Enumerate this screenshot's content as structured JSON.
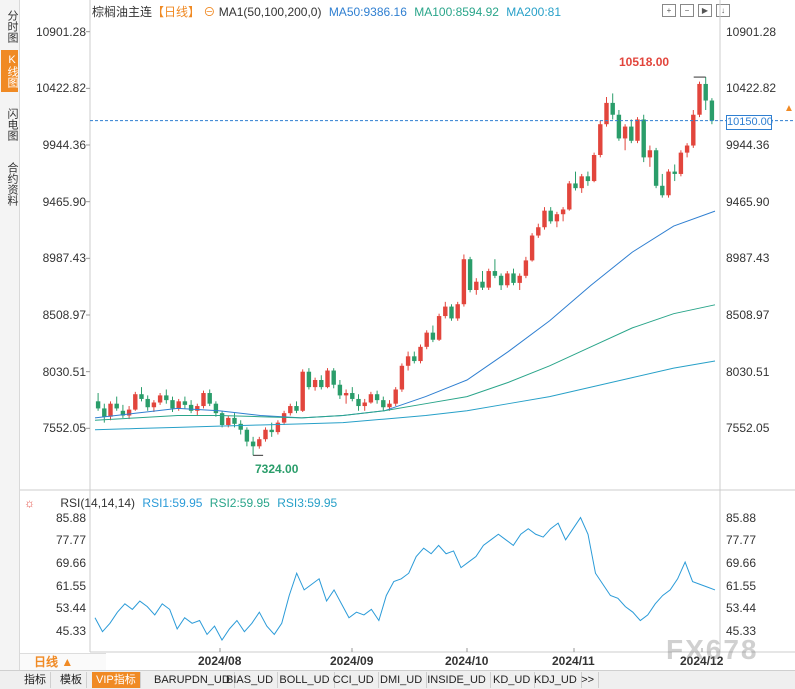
{
  "sidebar": {
    "tabs": [
      {
        "label": "分时图",
        "active": false
      },
      {
        "label": "K线图",
        "active": true
      },
      {
        "label": "闪电图",
        "active": false
      },
      {
        "label": "合约资料",
        "active": false
      }
    ]
  },
  "header": {
    "title": "棕榈油主连",
    "period": "【日线】",
    "ma_label": "MA1(50,100,200,0)",
    "ma50": "MA50:9386.16",
    "ma100": "MA100:8594.92",
    "ma200": "MA200:81"
  },
  "rsi_header": {
    "label": "RSI(14,14,14)",
    "rsi1": "RSI1:59.95",
    "rsi2": "RSI2:59.95",
    "rsi3": "RSI3:59.95"
  },
  "colors": {
    "up": "#e2453c",
    "down": "#2a9d6a",
    "ma50": "#2f7fd1",
    "ma100": "#2aa58a",
    "ma200": "#27a0c8",
    "rsi": "#2b9bd8",
    "current": "#2f7fd1",
    "high_label": "#e2453c",
    "low_label": "#2a9d6a"
  },
  "annotations": {
    "high": "10518.00",
    "low": "7324.00",
    "current": "10150.00"
  },
  "watermark": "FX678",
  "period_selector": "日线 ▲",
  "bottom_tabs": [
    "指标",
    "模板",
    "VIP指标",
    "BARUPDN_UD",
    "BIAS_UD",
    "BOLL_UD",
    "CCI_UD",
    "DMI_UD",
    "INSIDE_UD",
    "KD_UD",
    "KDJ_UD",
    ">>"
  ],
  "chart_data": {
    "type": "candlestick",
    "title": "棕榈油主连",
    "price_axis_labels": [
      "10901.28",
      "10422.82",
      "9944.36",
      "9465.90",
      "8987.43",
      "8508.97",
      "8030.51",
      "7552.05"
    ],
    "price_ylim": [
      7200,
      11000
    ],
    "x_tick_labels": [
      "2024/08",
      "2024/09",
      "2024/10",
      "2024/11",
      "2024/12"
    ],
    "candles_ohlc": [
      [
        7780,
        7850,
        7700,
        7720
      ],
      [
        7720,
        7760,
        7600,
        7650
      ],
      [
        7650,
        7780,
        7620,
        7760
      ],
      [
        7760,
        7820,
        7700,
        7720
      ],
      [
        7700,
        7750,
        7640,
        7660
      ],
      [
        7660,
        7740,
        7630,
        7710
      ],
      [
        7710,
        7860,
        7700,
        7840
      ],
      [
        7840,
        7900,
        7780,
        7800
      ],
      [
        7800,
        7830,
        7700,
        7730
      ],
      [
        7730,
        7790,
        7690,
        7770
      ],
      [
        7770,
        7850,
        7750,
        7830
      ],
      [
        7830,
        7880,
        7760,
        7790
      ],
      [
        7790,
        7820,
        7690,
        7720
      ],
      [
        7720,
        7800,
        7700,
        7780
      ],
      [
        7780,
        7820,
        7720,
        7750
      ],
      [
        7750,
        7790,
        7680,
        7700
      ],
      [
        7700,
        7760,
        7660,
        7740
      ],
      [
        7740,
        7870,
        7720,
        7850
      ],
      [
        7850,
        7880,
        7740,
        7760
      ],
      [
        7760,
        7780,
        7650,
        7680
      ],
      [
        7680,
        7700,
        7560,
        7580
      ],
      [
        7580,
        7660,
        7560,
        7640
      ],
      [
        7640,
        7680,
        7560,
        7590
      ],
      [
        7590,
        7620,
        7500,
        7540
      ],
      [
        7540,
        7560,
        7400,
        7440
      ],
      [
        7440,
        7480,
        7324,
        7400
      ],
      [
        7400,
        7480,
        7380,
        7460
      ],
      [
        7460,
        7560,
        7440,
        7540
      ],
      [
        7540,
        7600,
        7480,
        7520
      ],
      [
        7520,
        7620,
        7500,
        7600
      ],
      [
        7600,
        7700,
        7580,
        7680
      ],
      [
        7680,
        7760,
        7660,
        7740
      ],
      [
        7740,
        7780,
        7680,
        7700
      ],
      [
        7700,
        8050,
        7690,
        8030
      ],
      [
        8030,
        8060,
        7880,
        7900
      ],
      [
        7900,
        7980,
        7870,
        7960
      ],
      [
        7960,
        8000,
        7880,
        7900
      ],
      [
        7900,
        8060,
        7890,
        8040
      ],
      [
        8040,
        8060,
        7890,
        7920
      ],
      [
        7920,
        7960,
        7800,
        7830
      ],
      [
        7830,
        7880,
        7760,
        7850
      ],
      [
        7850,
        7900,
        7780,
        7800
      ],
      [
        7800,
        7840,
        7700,
        7740
      ],
      [
        7740,
        7800,
        7700,
        7770
      ],
      [
        7770,
        7860,
        7760,
        7840
      ],
      [
        7840,
        7870,
        7760,
        7790
      ],
      [
        7790,
        7820,
        7700,
        7730
      ],
      [
        7730,
        7790,
        7700,
        7760
      ],
      [
        7760,
        7900,
        7740,
        7880
      ],
      [
        7880,
        8100,
        7860,
        8080
      ],
      [
        8080,
        8200,
        8040,
        8160
      ],
      [
        8160,
        8200,
        8100,
        8120
      ],
      [
        8120,
        8260,
        8100,
        8240
      ],
      [
        8240,
        8380,
        8220,
        8360
      ],
      [
        8360,
        8420,
        8280,
        8300
      ],
      [
        8300,
        8520,
        8290,
        8500
      ],
      [
        8500,
        8620,
        8480,
        8580
      ],
      [
        8580,
        8600,
        8460,
        8480
      ],
      [
        8480,
        8620,
        8460,
        8600
      ],
      [
        8600,
        9020,
        8580,
        8980
      ],
      [
        8980,
        9000,
        8700,
        8720
      ],
      [
        8720,
        8820,
        8680,
        8790
      ],
      [
        8790,
        8880,
        8720,
        8740
      ],
      [
        8740,
        8900,
        8720,
        8880
      ],
      [
        8880,
        8980,
        8820,
        8840
      ],
      [
        8840,
        8860,
        8720,
        8760
      ],
      [
        8760,
        8880,
        8740,
        8860
      ],
      [
        8860,
        8900,
        8760,
        8780
      ],
      [
        8780,
        8860,
        8720,
        8840
      ],
      [
        8840,
        9000,
        8820,
        8970
      ],
      [
        8970,
        9200,
        8960,
        9180
      ],
      [
        9180,
        9280,
        9160,
        9250
      ],
      [
        9250,
        9420,
        9230,
        9390
      ],
      [
        9390,
        9420,
        9280,
        9300
      ],
      [
        9300,
        9380,
        9250,
        9360
      ],
      [
        9360,
        9420,
        9300,
        9400
      ],
      [
        9400,
        9640,
        9390,
        9620
      ],
      [
        9620,
        9720,
        9560,
        9580
      ],
      [
        9580,
        9700,
        9540,
        9680
      ],
      [
        9680,
        9720,
        9600,
        9640
      ],
      [
        9640,
        9880,
        9630,
        9860
      ],
      [
        9860,
        10150,
        9840,
        10120
      ],
      [
        10120,
        10350,
        10100,
        10300
      ],
      [
        10300,
        10380,
        10160,
        10200
      ],
      [
        10200,
        10240,
        9980,
        10000
      ],
      [
        10000,
        10120,
        9900,
        10100
      ],
      [
        10100,
        10160,
        9960,
        9980
      ],
      [
        9980,
        10180,
        9960,
        10160
      ],
      [
        10160,
        10200,
        9800,
        9840
      ],
      [
        9840,
        9940,
        9760,
        9900
      ],
      [
        9900,
        9920,
        9580,
        9600
      ],
      [
        9600,
        9700,
        9500,
        9520
      ],
      [
        9520,
        9740,
        9500,
        9720
      ],
      [
        9720,
        9780,
        9640,
        9700
      ],
      [
        9700,
        9900,
        9680,
        9880
      ],
      [
        9880,
        9960,
        9840,
        9940
      ],
      [
        9940,
        10240,
        9920,
        10200
      ],
      [
        10200,
        10480,
        10180,
        10460
      ],
      [
        10460,
        10518,
        10240,
        10320
      ],
      [
        10320,
        10340,
        10120,
        10150
      ]
    ],
    "ma50_sampled": [
      7640,
      7680,
      7720,
      7700,
      7660,
      7640,
      7660,
      7700,
      7820,
      7960,
      8200,
      8460,
      8760,
      9040,
      9260,
      9386
    ],
    "ma100_sampled": [
      7620,
      7640,
      7660,
      7660,
      7650,
      7640,
      7660,
      7700,
      7760,
      7820,
      7940,
      8080,
      8240,
      8400,
      8520,
      8595
    ],
    "ma200_sampled": [
      7540,
      7550,
      7560,
      7570,
      7580,
      7590,
      7600,
      7630,
      7660,
      7700,
      7760,
      7820,
      7900,
      7980,
      8060,
      8120
    ],
    "rsi_axis_labels": [
      "85.88",
      "77.77",
      "69.66",
      "61.55",
      "53.44",
      "45.33"
    ],
    "rsi_ylim": [
      42,
      88
    ],
    "rsi_values": [
      50,
      45,
      48,
      52,
      55,
      53,
      56,
      54,
      51,
      55,
      53,
      46,
      50,
      48,
      49,
      44,
      47,
      42,
      46,
      49,
      45,
      48,
      52,
      47,
      44,
      48,
      58,
      66,
      60,
      62,
      64,
      56,
      60,
      55,
      50,
      52,
      51,
      53,
      49,
      58,
      63,
      64,
      66,
      72,
      75,
      73,
      76,
      73,
      74,
      68,
      70,
      72,
      76,
      78,
      80,
      78,
      76,
      80,
      82,
      80,
      79,
      82,
      84,
      78,
      82,
      86,
      80,
      66,
      62,
      58,
      57,
      54,
      52,
      49,
      51,
      55,
      58,
      60,
      64,
      70,
      63,
      62,
      61,
      60
    ],
    "last_rsi": 59.95
  }
}
